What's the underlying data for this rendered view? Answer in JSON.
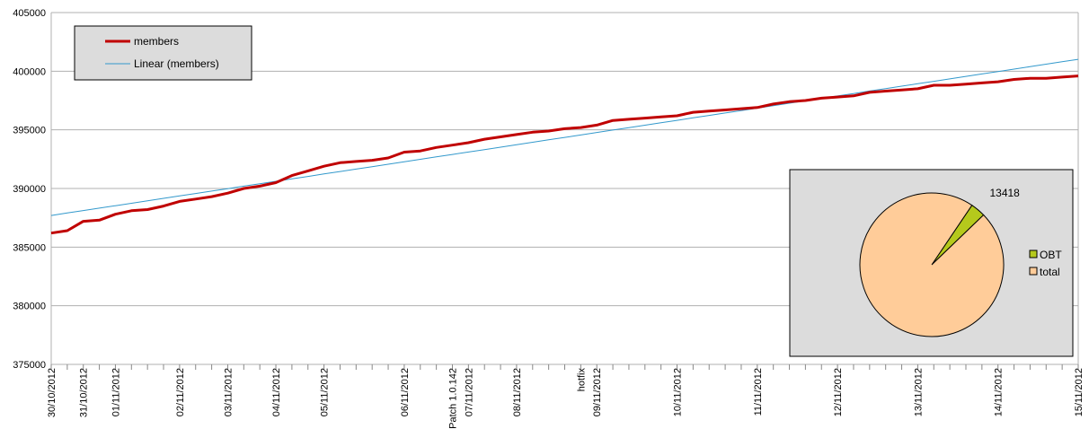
{
  "chart_data": [
    {
      "type": "line",
      "categories": [
        "30/10/2012",
        null,
        "31/10/2012",
        null,
        "01/11/2012",
        null,
        null,
        null,
        "02/11/2012",
        null,
        null,
        "03/11/2012",
        null,
        null,
        "04/11/2012",
        null,
        null,
        "05/11/2012",
        null,
        null,
        null,
        null,
        "06/11/2012",
        null,
        null,
        "Patch 1.0.142",
        "07/11/2012",
        null,
        null,
        "08/11/2012",
        null,
        null,
        null,
        "hotfix",
        "09/11/2012",
        null,
        null,
        null,
        null,
        "10/11/2012",
        null,
        null,
        null,
        null,
        "11/11/2012",
        null,
        null,
        null,
        null,
        "12/11/2012",
        null,
        null,
        null,
        null,
        "13/11/2012",
        null,
        null,
        null,
        null,
        "14/11/2012",
        null,
        null,
        null,
        null,
        "15/11/2012"
      ],
      "series": [
        {
          "name": "members",
          "color": "#c00000",
          "values": [
            386200,
            386400,
            387200,
            387300,
            387800,
            388100,
            388200,
            388500,
            388900,
            389100,
            389300,
            389600,
            390000,
            390200,
            390500,
            391100,
            391500,
            391900,
            392200,
            392300,
            392400,
            392600,
            393100,
            393200,
            393500,
            393700,
            393900,
            394200,
            394400,
            394600,
            394800,
            394900,
            395100,
            395200,
            395400,
            395800,
            395900,
            396000,
            396100,
            396200,
            396500,
            396600,
            396700,
            396800,
            396900,
            397200,
            397400,
            397500,
            397700,
            397800,
            397900,
            398200,
            398300,
            398400,
            398500,
            398800,
            398800,
            398900,
            399000,
            399100,
            399300,
            399400,
            399400,
            399500,
            399600
          ]
        },
        {
          "name": "Linear (members)",
          "color": "#3399cc",
          "values": [
            387700,
            387908,
            388116,
            388324,
            388532,
            388740,
            388948,
            389156,
            389364,
            389572,
            389780,
            389988,
            390196,
            390404,
            390612,
            390820,
            391028,
            391236,
            391444,
            391652,
            391860,
            392068,
            392276,
            392484,
            392692,
            392900,
            393108,
            393316,
            393524,
            393732,
            393940,
            394148,
            394356,
            394564,
            394772,
            394980,
            395188,
            395396,
            395604,
            395812,
            396020,
            396228,
            396436,
            396644,
            396852,
            397060,
            397268,
            397476,
            397684,
            397892,
            398100,
            398308,
            398516,
            398724,
            398932,
            399140,
            399348,
            399556,
            399764,
            399972,
            400180,
            400388,
            400596,
            400804,
            401012
          ]
        }
      ],
      "ylim": [
        375000,
        405000
      ],
      "yticks": [
        375000,
        380000,
        385000,
        390000,
        395000,
        400000,
        405000
      ],
      "grid": true,
      "legend": "upper left"
    },
    {
      "type": "pie",
      "categories": [
        "OBT",
        "total"
      ],
      "values": [
        13418,
        386000
      ],
      "value_labels": [
        "13418",
        null
      ],
      "colors": [
        "#b5c91c",
        "#ffcc99"
      ],
      "legend": "right"
    }
  ]
}
